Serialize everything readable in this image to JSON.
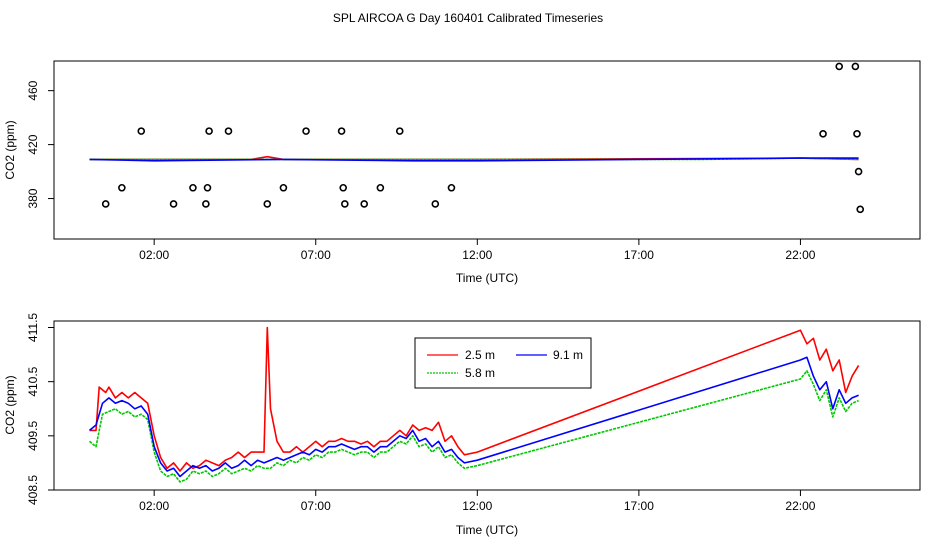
{
  "figure_title": "SPL AIRCOA G  Day 160401  Calibrated Timeseries",
  "chart_data": [
    {
      "type": "line",
      "title": "",
      "xlabel": "Time (UTC)",
      "ylabel": "CO2 (ppm)",
      "xlim": [
        -1.1,
        25.7
      ],
      "ylim": [
        350,
        482
      ],
      "x_ticks": [
        2,
        7,
        12,
        17,
        22
      ],
      "x_tick_labels": [
        "02:00",
        "07:00",
        "12:00",
        "17:00",
        "22:00"
      ],
      "y_ticks": [
        380,
        420,
        460
      ],
      "y_tick_labels": [
        "380",
        "420",
        "460"
      ],
      "series": [
        {
          "name": "2.5 m",
          "color": "#ff0000",
          "x": [
            0,
            5,
            5.5,
            6,
            10,
            12,
            22,
            23.8
          ],
          "y": [
            409,
            409,
            411,
            409,
            409,
            409,
            410,
            409
          ]
        },
        {
          "name": "5.8 m",
          "color": "#00c800",
          "x": [
            0,
            16,
            19,
            22,
            23.8
          ],
          "y": [
            409,
            409,
            409,
            410,
            409
          ]
        },
        {
          "name": "9.1 m",
          "color": "#0000ff",
          "x": [
            0,
            2,
            6,
            10,
            12,
            22,
            23.8
          ],
          "y": [
            409,
            408,
            409,
            408,
            408,
            410,
            410
          ]
        }
      ],
      "outliers": {
        "x": [
          0.5,
          1.0,
          1.6,
          2.6,
          3.2,
          3.6,
          3.65,
          3.7,
          4.3,
          5.5,
          6.0,
          6.7,
          7.8,
          7.85,
          7.9,
          8.5,
          9.0,
          9.6,
          10.7,
          11.2,
          22.7,
          23.2,
          23.7,
          23.75,
          23.8,
          23.85
        ],
        "y": [
          376,
          388,
          430,
          376,
          388,
          376,
          388,
          430,
          430,
          376,
          388,
          430,
          430,
          388,
          376,
          376,
          388,
          430,
          376,
          388,
          428,
          478,
          478,
          428,
          400,
          372
        ]
      }
    },
    {
      "type": "line",
      "title": "",
      "xlabel": "Time (UTC)",
      "ylabel": "CO2 (ppm)",
      "xlim": [
        -1.1,
        25.7
      ],
      "ylim": [
        408.5,
        411.62
      ],
      "x_ticks": [
        2,
        7,
        12,
        17,
        22
      ],
      "x_tick_labels": [
        "02:00",
        "07:00",
        "12:00",
        "17:00",
        "22:00"
      ],
      "y_ticks": [
        408.5,
        409.5,
        410.5,
        411.5
      ],
      "y_tick_labels": [
        "408.5",
        "409.5",
        "410.5",
        "411.5"
      ],
      "legend": {
        "entries": [
          "2.5 m",
          "9.1 m",
          "5.8 m"
        ]
      },
      "series": [
        {
          "name": "2.5 m",
          "color": "#ff0000",
          "x": [
            0,
            0.2,
            0.3,
            0.5,
            0.6,
            0.8,
            1.0,
            1.2,
            1.4,
            1.6,
            1.8,
            2.0,
            2.2,
            2.4,
            2.6,
            2.8,
            3.0,
            3.2,
            3.4,
            3.6,
            3.8,
            4.0,
            4.2,
            4.4,
            4.6,
            4.8,
            5.0,
            5.2,
            5.4,
            5.5,
            5.6,
            5.8,
            6.0,
            6.2,
            6.4,
            6.6,
            6.8,
            7.0,
            7.2,
            7.4,
            7.6,
            7.8,
            8.0,
            8.2,
            8.4,
            8.6,
            8.8,
            9.0,
            9.2,
            9.4,
            9.6,
            9.8,
            10.0,
            10.2,
            10.4,
            10.6,
            10.8,
            11.0,
            11.2,
            11.4,
            11.6,
            12.0,
            22.0,
            22.2,
            22.4,
            22.6,
            22.8,
            23.0,
            23.2,
            23.4,
            23.6,
            23.8
          ],
          "y": [
            409.6,
            409.6,
            410.4,
            410.3,
            410.4,
            410.2,
            410.3,
            410.2,
            410.3,
            410.2,
            410.1,
            409.5,
            409.1,
            408.9,
            409.0,
            408.85,
            409.0,
            408.9,
            408.95,
            409.05,
            409.0,
            408.95,
            409.05,
            409.1,
            409.2,
            409.1,
            409.2,
            409.2,
            409.2,
            411.5,
            410.0,
            409.4,
            409.2,
            409.2,
            409.3,
            409.2,
            409.3,
            409.4,
            409.3,
            409.4,
            409.4,
            409.45,
            409.4,
            409.4,
            409.35,
            409.4,
            409.3,
            409.4,
            409.4,
            409.5,
            409.6,
            409.5,
            409.7,
            409.6,
            409.65,
            409.6,
            409.75,
            409.4,
            409.5,
            409.3,
            409.15,
            409.2,
            411.45,
            411.2,
            411.3,
            410.9,
            411.1,
            410.7,
            410.9,
            410.3,
            410.6,
            410.8
          ]
        },
        {
          "name": "5.8 m",
          "color": "#00c800",
          "x": [
            0,
            0.2,
            0.4,
            0.6,
            0.8,
            1.0,
            1.2,
            1.4,
            1.6,
            1.8,
            2.0,
            2.2,
            2.4,
            2.6,
            2.8,
            3.0,
            3.2,
            3.4,
            3.6,
            3.8,
            4.0,
            4.2,
            4.4,
            4.6,
            4.8,
            5.0,
            5.2,
            5.4,
            5.6,
            5.8,
            6.0,
            6.2,
            6.4,
            6.6,
            6.8,
            7.0,
            7.2,
            7.4,
            7.6,
            7.8,
            8.0,
            8.2,
            8.4,
            8.6,
            8.8,
            9.0,
            9.2,
            9.4,
            9.6,
            9.8,
            10.0,
            10.2,
            10.4,
            10.6,
            10.8,
            11.0,
            11.2,
            11.4,
            11.6,
            12.0,
            22.0,
            22.2,
            22.4,
            22.6,
            22.8,
            23.0,
            23.2,
            23.4,
            23.6,
            23.8
          ],
          "y": [
            409.4,
            409.3,
            409.9,
            409.95,
            410.0,
            409.9,
            409.95,
            409.85,
            409.9,
            409.8,
            409.2,
            408.85,
            408.75,
            408.8,
            408.65,
            408.7,
            408.85,
            408.8,
            408.85,
            408.75,
            408.8,
            408.9,
            408.8,
            408.85,
            408.9,
            408.85,
            408.95,
            408.9,
            408.9,
            409.0,
            408.95,
            409.05,
            409.0,
            409.1,
            409.05,
            409.15,
            409.1,
            409.2,
            409.2,
            409.25,
            409.2,
            409.15,
            409.2,
            409.2,
            409.1,
            409.2,
            409.2,
            409.3,
            409.4,
            409.35,
            409.5,
            409.3,
            409.35,
            409.2,
            409.3,
            409.1,
            409.15,
            409.0,
            408.9,
            408.95,
            410.55,
            410.7,
            410.45,
            410.15,
            410.35,
            409.85,
            410.2,
            409.95,
            410.1,
            410.15
          ]
        },
        {
          "name": "9.1 m",
          "color": "#0000ff",
          "x": [
            0,
            0.2,
            0.4,
            0.6,
            0.8,
            1.0,
            1.2,
            1.4,
            1.6,
            1.8,
            2.0,
            2.2,
            2.4,
            2.6,
            2.8,
            3.0,
            3.2,
            3.4,
            3.6,
            3.8,
            4.0,
            4.2,
            4.4,
            4.6,
            4.8,
            5.0,
            5.2,
            5.4,
            5.6,
            5.8,
            6.0,
            6.2,
            6.4,
            6.6,
            6.8,
            7.0,
            7.2,
            7.4,
            7.6,
            7.8,
            8.0,
            8.2,
            8.4,
            8.6,
            8.8,
            9.0,
            9.2,
            9.4,
            9.6,
            9.8,
            10.0,
            10.2,
            10.4,
            10.6,
            10.8,
            11.0,
            11.2,
            11.4,
            11.6,
            12.0,
            22.0,
            22.2,
            22.4,
            22.6,
            22.8,
            23.0,
            23.2,
            23.4,
            23.6,
            23.8
          ],
          "y": [
            409.6,
            409.7,
            410.1,
            410.2,
            410.1,
            410.15,
            410.1,
            410.0,
            410.05,
            409.9,
            409.3,
            409.0,
            408.85,
            408.9,
            408.75,
            408.85,
            408.95,
            408.9,
            408.95,
            408.85,
            408.9,
            409.0,
            408.9,
            408.95,
            409.05,
            408.95,
            409.05,
            409.0,
            409.05,
            409.1,
            409.05,
            409.1,
            409.15,
            409.2,
            409.15,
            409.25,
            409.2,
            409.3,
            409.3,
            409.35,
            409.3,
            409.25,
            409.3,
            409.3,
            409.2,
            409.3,
            409.3,
            409.4,
            409.5,
            409.45,
            409.6,
            409.4,
            409.45,
            409.3,
            409.4,
            409.2,
            409.25,
            409.1,
            409.0,
            409.05,
            410.9,
            410.95,
            410.6,
            410.35,
            410.5,
            410.0,
            410.35,
            410.1,
            410.2,
            410.25
          ]
        }
      ]
    }
  ]
}
